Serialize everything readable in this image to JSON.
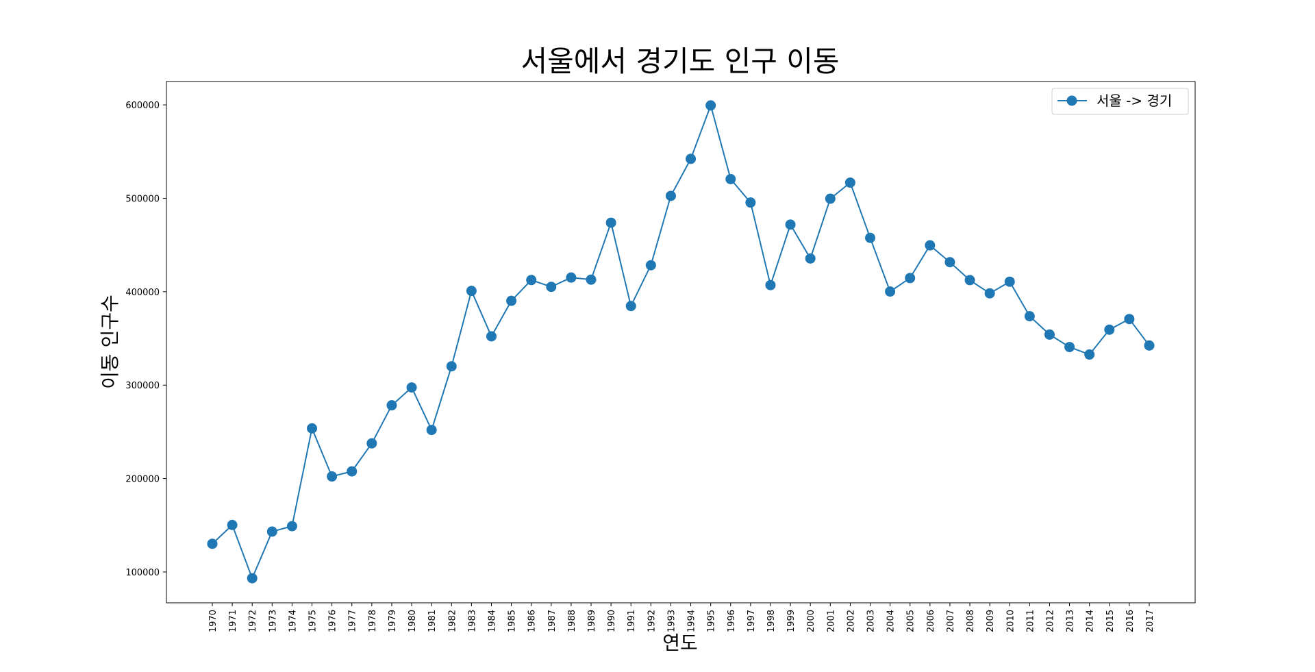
{
  "chart_data": {
    "type": "line",
    "title": "서울에서 경기도 인구 이동",
    "xlabel": "연도",
    "ylabel": "이동 인구수",
    "x": [
      "1970",
      "1971",
      "1972",
      "1973",
      "1974",
      "1975",
      "1976",
      "1977",
      "1978",
      "1979",
      "1980",
      "1981",
      "1982",
      "1983",
      "1984",
      "1985",
      "1986",
      "1987",
      "1988",
      "1989",
      "1990",
      "1991",
      "1992",
      "1993",
      "1994",
      "1995",
      "1996",
      "1997",
      "1998",
      "1999",
      "2000",
      "2001",
      "2002",
      "2003",
      "2004",
      "2005",
      "2006",
      "2007",
      "2008",
      "2009",
      "2010",
      "2011",
      "2012",
      "2013",
      "2014",
      "2015",
      "2016",
      "2017"
    ],
    "yticks": [
      100000,
      200000,
      300000,
      400000,
      500000,
      600000
    ],
    "ylim": [
      67000,
      625000
    ],
    "series": [
      {
        "name": "서울 -> 경기",
        "color": "#1f77b4",
        "marker": "circle",
        "values": [
          130149,
          150313,
          93333,
          143234,
          149045,
          253705,
          202276,
          207722,
          237684,
          278411,
          297539,
          252073,
          320174,
          400875,
          352238,
          390265,
          412535,
          405220,
          415174,
          412933,
          473889,
          384714,
          428344,
          502584,
          542204,
          599411,
          520566,
          495454,
          407050,
          471841,
          435573,
          499575,
          516765,
          457656,
          400206,
          414621,
          449632,
          431637,
          412408,
          398282,
          410735,
          373771,
          354135,
          340801,
          332785,
          359337,
          370760,
          342433
        ]
      }
    ],
    "legend_position": "top-right",
    "grid": false
  }
}
